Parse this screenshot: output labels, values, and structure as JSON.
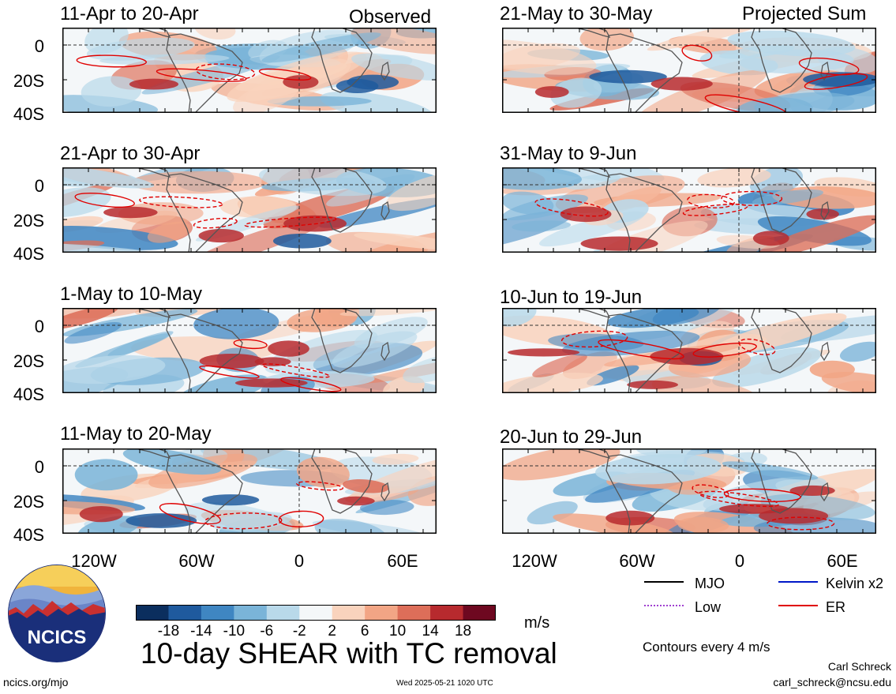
{
  "panels": [
    {
      "title": "11-Apr to 20-Apr",
      "tag": "Observed"
    },
    {
      "title": "21-Apr to 30-Apr",
      "tag": ""
    },
    {
      "title": "1-May to 10-May",
      "tag": ""
    },
    {
      "title": "11-May to 20-May",
      "tag": ""
    },
    {
      "title": "21-May to 30-May",
      "tag": "Projected Sum"
    },
    {
      "title": "31-May to 9-Jun",
      "tag": ""
    },
    {
      "title": "10-Jun to 19-Jun",
      "tag": ""
    },
    {
      "title": "20-Jun to 29-Jun",
      "tag": ""
    }
  ],
  "y_ticks": [
    "0",
    "20S",
    "40S"
  ],
  "x_ticks": [
    "120W",
    "60W",
    "0",
    "60E"
  ],
  "colorbar": {
    "colors": [
      "#0b2e5e",
      "#1f5a9e",
      "#3f86c2",
      "#7ab4d8",
      "#b9d9ea",
      "#f4f7f9",
      "#f9d3bd",
      "#f2a585",
      "#dd6e59",
      "#b72a2e",
      "#6e0820"
    ],
    "labels": [
      "-18",
      "-14",
      "-10",
      "-6",
      "-2",
      "2",
      "6",
      "10",
      "14",
      "18"
    ],
    "units": "m/s"
  },
  "legend": [
    {
      "label": "MJO",
      "color": "#000000",
      "style": "solid"
    },
    {
      "label": "Kelvin x2",
      "color": "#0018c8",
      "style": "solid"
    },
    {
      "label": "Low",
      "color": "#a040d0",
      "style": "dotted"
    },
    {
      "label": "ER",
      "color": "#e00000",
      "style": "solid"
    }
  ],
  "contour_note": "Contours every 4 m/s",
  "main_title": "10-day SHEAR with TC removal",
  "logo_text": "NCICS",
  "footer": {
    "url": "ncics.org/mjo",
    "timestamp": "Wed 2025-05-21 1020 UTC",
    "author": "Carl Schreck",
    "email": "carl_schreck@ncsu.edu"
  }
}
